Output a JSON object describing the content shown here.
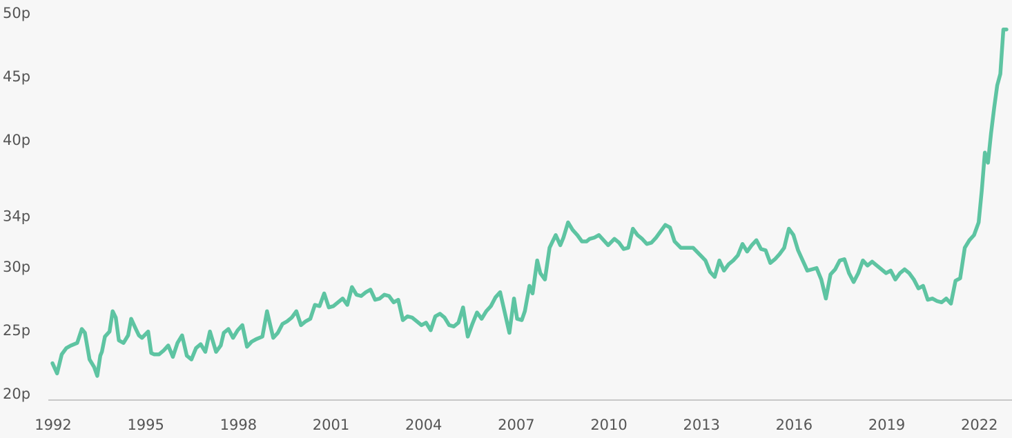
{
  "chart_data": {
    "type": "line",
    "title": "",
    "xlabel": "",
    "ylabel": "",
    "x_ticks": [
      "1992",
      "1995",
      "1998",
      "2001",
      "2004",
      "2007",
      "2010",
      "2013",
      "2016",
      "2019",
      "2022"
    ],
    "y_ticks": [
      "20p",
      "25p",
      "30p",
      "34p",
      "40p",
      "45p",
      "50p"
    ],
    "ylim": [
      20,
      50
    ],
    "xlim": [
      1992.0,
      2022.9
    ],
    "grid": false,
    "legend": "none",
    "line_color": "#5ec4a2",
    "axis_color": "#c8c8c8",
    "series": [
      {
        "x": [
          1992.0,
          1992.15,
          1992.3,
          1992.45,
          1992.6,
          1992.8,
          1992.95,
          1993.05,
          1993.2,
          1993.35,
          1993.45,
          1993.55,
          1993.6,
          1993.7,
          1993.85,
          1993.95,
          1994.05,
          1994.15,
          1994.3,
          1994.45,
          1994.55,
          1994.7,
          1994.8,
          1994.9,
          1995.1,
          1995.2,
          1995.3,
          1995.45,
          1995.6,
          1995.75,
          1995.9,
          1996.05,
          1996.2,
          1996.35,
          1996.5,
          1996.65,
          1996.8,
          1996.95,
          1997.1,
          1997.3,
          1997.45,
          1997.55,
          1997.7,
          1997.85,
          1998.0,
          1998.15,
          1998.3,
          1998.45,
          1998.6,
          1998.8,
          1998.95,
          1999.15,
          1999.3,
          1999.45,
          1999.6,
          1999.75,
          1999.9,
          2000.05,
          2000.2,
          2000.35,
          2000.5,
          2000.65,
          2000.8,
          2000.95,
          2001.1,
          2001.25,
          2001.4,
          2001.55,
          2001.7,
          2001.85,
          2002.0,
          2002.15,
          2002.3,
          2002.45,
          2002.6,
          2002.75,
          2002.9,
          2003.05,
          2003.2,
          2003.35,
          2003.5,
          2003.65,
          2003.8,
          2003.95,
          2004.1,
          2004.25,
          2004.4,
          2004.55,
          2004.7,
          2004.85,
          2005.0,
          2005.15,
          2005.3,
          2005.45,
          2005.6,
          2005.75,
          2005.9,
          2006.05,
          2006.2,
          2006.35,
          2006.5,
          2006.65,
          2006.8,
          2006.95,
          2007.05,
          2007.2,
          2007.3,
          2007.45,
          2007.55,
          2007.7,
          2007.8,
          2007.95,
          2008.1,
          2008.2,
          2008.3,
          2008.45,
          2008.55,
          2008.7,
          2008.85,
          2009.0,
          2009.15,
          2009.3,
          2009.4,
          2009.55,
          2009.7,
          2009.85,
          2010.0,
          2010.2,
          2010.35,
          2010.5,
          2010.65,
          2010.8,
          2010.95,
          2011.1,
          2011.25,
          2011.4,
          2011.55,
          2011.7,
          2011.85,
          2012.0,
          2012.15,
          2012.35,
          2012.55,
          2012.75,
          2012.95,
          2013.15,
          2013.3,
          2013.45,
          2013.6,
          2013.75,
          2013.9,
          2014.05,
          2014.2,
          2014.35,
          2014.5,
          2014.65,
          2014.8,
          2014.95,
          2015.1,
          2015.25,
          2015.4,
          2015.55,
          2015.7,
          2015.85,
          2016.0,
          2016.15,
          2016.3,
          2016.45,
          2016.6,
          2016.75,
          2016.9,
          2017.05,
          2017.2,
          2017.35,
          2017.5,
          2017.65,
          2017.8,
          2017.95,
          2018.1,
          2018.25,
          2018.4,
          2018.55,
          2018.7,
          2018.85,
          2019.0,
          2019.15,
          2019.3,
          2019.45,
          2019.6,
          2019.75,
          2019.9,
          2020.05,
          2020.2,
          2020.35,
          2020.5,
          2020.65,
          2020.8,
          2020.95,
          2021.1,
          2021.25,
          2021.4,
          2021.55,
          2021.7,
          2021.85,
          2022.0,
          2022.1,
          2022.2,
          2022.3,
          2022.4,
          2022.5,
          2022.6,
          2022.7,
          2022.8,
          2022.9
        ],
        "y": [
          22.9,
          22.1,
          23.6,
          24.1,
          24.3,
          24.5,
          25.6,
          25.3,
          23.2,
          22.6,
          21.9,
          23.5,
          23.8,
          25.0,
          25.4,
          27.0,
          26.5,
          24.7,
          24.5,
          25.1,
          26.4,
          25.6,
          25.1,
          24.9,
          25.4,
          23.7,
          23.6,
          23.6,
          23.9,
          24.3,
          23.4,
          24.5,
          25.1,
          23.5,
          23.2,
          24.1,
          24.4,
          23.8,
          25.4,
          23.8,
          24.3,
          25.3,
          25.6,
          24.9,
          25.5,
          25.9,
          24.2,
          24.6,
          24.8,
          25.0,
          27.0,
          24.9,
          25.3,
          26.0,
          26.2,
          26.5,
          27.0,
          25.9,
          26.2,
          26.4,
          27.5,
          27.4,
          28.4,
          27.3,
          27.4,
          27.7,
          28.0,
          27.5,
          28.9,
          28.3,
          28.2,
          28.5,
          28.7,
          27.9,
          28.0,
          28.3,
          28.2,
          27.7,
          27.9,
          26.3,
          26.6,
          26.5,
          26.2,
          25.9,
          26.1,
          25.5,
          26.6,
          26.8,
          26.5,
          25.9,
          25.8,
          26.1,
          27.3,
          25.0,
          26.0,
          26.9,
          26.4,
          27.0,
          27.4,
          28.1,
          28.5,
          26.9,
          25.3,
          28.0,
          26.4,
          26.3,
          27.0,
          29.0,
          28.4,
          31.0,
          30.0,
          29.5,
          32.0,
          32.5,
          33.0,
          32.2,
          32.8,
          34.0,
          33.4,
          33.0,
          32.5,
          32.5,
          32.7,
          32.8,
          33.0,
          32.6,
          32.2,
          32.7,
          32.4,
          31.9,
          32.0,
          33.5,
          33.0,
          32.7,
          32.3,
          32.4,
          32.8,
          33.3,
          33.8,
          33.6,
          32.5,
          32.0,
          32.0,
          32.0,
          31.5,
          31.0,
          30.1,
          29.7,
          31.0,
          30.2,
          30.7,
          31.0,
          31.4,
          32.3,
          31.7,
          32.2,
          32.6,
          31.9,
          31.8,
          30.8,
          31.1,
          31.5,
          32.0,
          33.5,
          33.0,
          31.8,
          31.0,
          30.2,
          30.3,
          30.4,
          29.5,
          28.0,
          29.9,
          30.3,
          31.0,
          31.1,
          30.0,
          29.3,
          30.0,
          31.0,
          30.6,
          30.9,
          30.6,
          30.3,
          30.0,
          30.2,
          29.5,
          30.0,
          30.3,
          30.0,
          29.5,
          28.8,
          29.0,
          27.9,
          28.0,
          27.8,
          27.7,
          28.0,
          27.6,
          29.4,
          29.6,
          32.0,
          32.6,
          33.0,
          34.0,
          36.5,
          39.5,
          38.7,
          41.0,
          43.0,
          44.8,
          45.7,
          49.2,
          49.2
        ]
      }
    ]
  }
}
